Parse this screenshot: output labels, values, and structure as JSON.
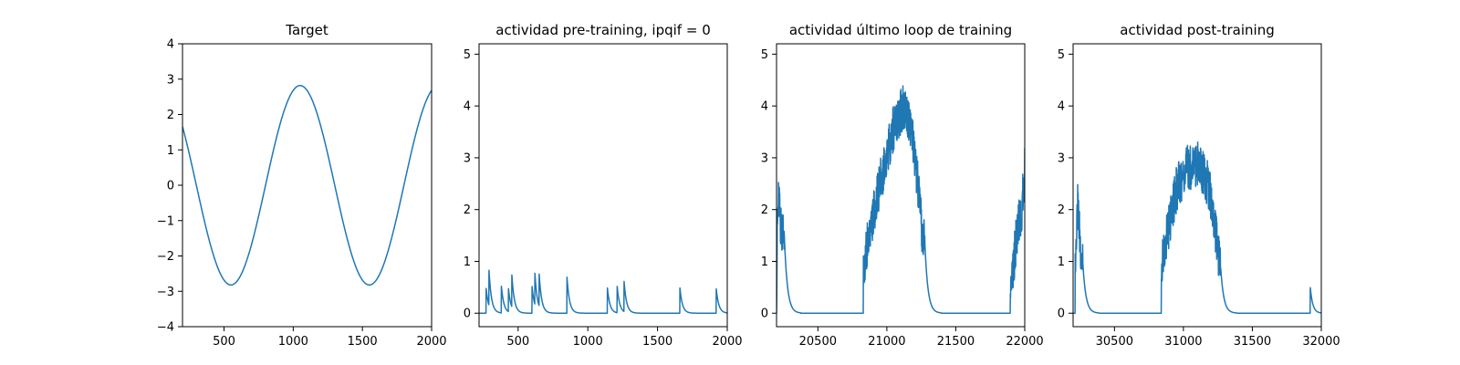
{
  "colors": {
    "series": "#1f77b4",
    "axes": "#000000",
    "background": "#ffffff"
  },
  "chart_data": [
    {
      "type": "line",
      "title": "Target",
      "xlim": [
        200,
        2000
      ],
      "ylim": [
        -4,
        4
      ],
      "xticks": [
        500,
        1000,
        1500,
        2000
      ],
      "yticks": [
        -4,
        -3,
        -2,
        -1,
        0,
        1,
        2,
        3,
        4
      ],
      "grid": false,
      "series": [
        {
          "kind": "sine",
          "amplitude": 2.82,
          "period": 1000,
          "phase_x": 1050
        }
      ]
    },
    {
      "type": "line",
      "title": "actividad pre-training, ipqif = 0",
      "xlim": [
        220,
        2000
      ],
      "ylim": [
        -0.26,
        5.2
      ],
      "xticks": [
        500,
        1000,
        1500,
        2000
      ],
      "yticks": [
        0,
        1,
        2,
        3,
        4,
        5
      ],
      "grid": false,
      "series": [
        {
          "kind": "spikes",
          "decay": 18,
          "spikes": [
            [
              270,
              0.5
            ],
            [
              290,
              0.72
            ],
            [
              380,
              0.52
            ],
            [
              430,
              0.47
            ],
            [
              455,
              0.62
            ],
            [
              600,
              0.52
            ],
            [
              620,
              0.62
            ],
            [
              650,
              0.65
            ],
            [
              850,
              0.72
            ],
            [
              1140,
              0.5
            ],
            [
              1210,
              0.52
            ],
            [
              1260,
              0.58
            ],
            [
              1660,
              0.5
            ],
            [
              1920,
              0.5
            ]
          ]
        }
      ]
    },
    {
      "type": "line",
      "title": "actividad último loop de training",
      "xlim": [
        20200,
        22000
      ],
      "ylim": [
        -0.26,
        5.2
      ],
      "xticks": [
        20500,
        21000,
        21500,
        22000
      ],
      "yticks": [
        0,
        1,
        2,
        3,
        4,
        5
      ],
      "grid": false,
      "series": [
        {
          "kind": "bursts",
          "bursts": [
            {
              "start": 20200,
              "end": 20255,
              "shape": [
                [
                  20200,
                  0
                ],
                [
                  20205,
                  1.6
                ],
                [
                  20215,
                  2.2
                ],
                [
                  20230,
                  1.7
                ],
                [
                  20250,
                  1.6
                ]
              ]
            },
            {
              "start": 20830,
              "end": 21275,
              "shape": [
                [
                  20830,
                  0.9
                ],
                [
                  20870,
                  1.5
                ],
                [
                  20950,
                  2.5
                ],
                [
                  21050,
                  3.6
                ],
                [
                  21120,
                  4.0
                ],
                [
                  21170,
                  3.7
                ],
                [
                  21220,
                  2.6
                ],
                [
                  21260,
                  1.4
                ]
              ]
            },
            {
              "start": 21895,
              "end": 22000,
              "shape": [
                [
                  21895,
                  0.4
                ],
                [
                  21920,
                  1.0
                ],
                [
                  21950,
                  1.7
                ],
                [
                  21980,
                  2.0
                ],
                [
                  22000,
                  2.8
                ]
              ]
            }
          ]
        }
      ]
    },
    {
      "type": "line",
      "title": "actividad post-training",
      "xlim": [
        30200,
        32000
      ],
      "ylim": [
        -0.26,
        5.2
      ],
      "xticks": [
        30500,
        31000,
        31500,
        32000
      ],
      "yticks": [
        0,
        1,
        2,
        3,
        4,
        5
      ],
      "grid": false,
      "series": [
        {
          "kind": "bursts",
          "bursts": [
            {
              "start": 30215,
              "end": 30270,
              "shape": [
                [
                  30215,
                  1.0
                ],
                [
                  30225,
                  1.7
                ],
                [
                  30235,
                  2.1
                ],
                [
                  30250,
                  1.4
                ],
                [
                  30265,
                  1.0
                ]
              ]
            },
            {
              "start": 30840,
              "end": 31270,
              "shape": [
                [
                  30840,
                  0.9
                ],
                [
                  30880,
                  1.5
                ],
                [
                  30950,
                  2.4
                ],
                [
                  31030,
                  2.8
                ],
                [
                  31100,
                  2.9
                ],
                [
                  31150,
                  2.7
                ],
                [
                  31190,
                  2.4
                ],
                [
                  31230,
                  1.6
                ],
                [
                  31265,
                  0.9
                ]
              ]
            }
          ],
          "spikes": [
            [
              31920,
              0.5
            ]
          ],
          "decay": 18
        }
      ]
    }
  ]
}
